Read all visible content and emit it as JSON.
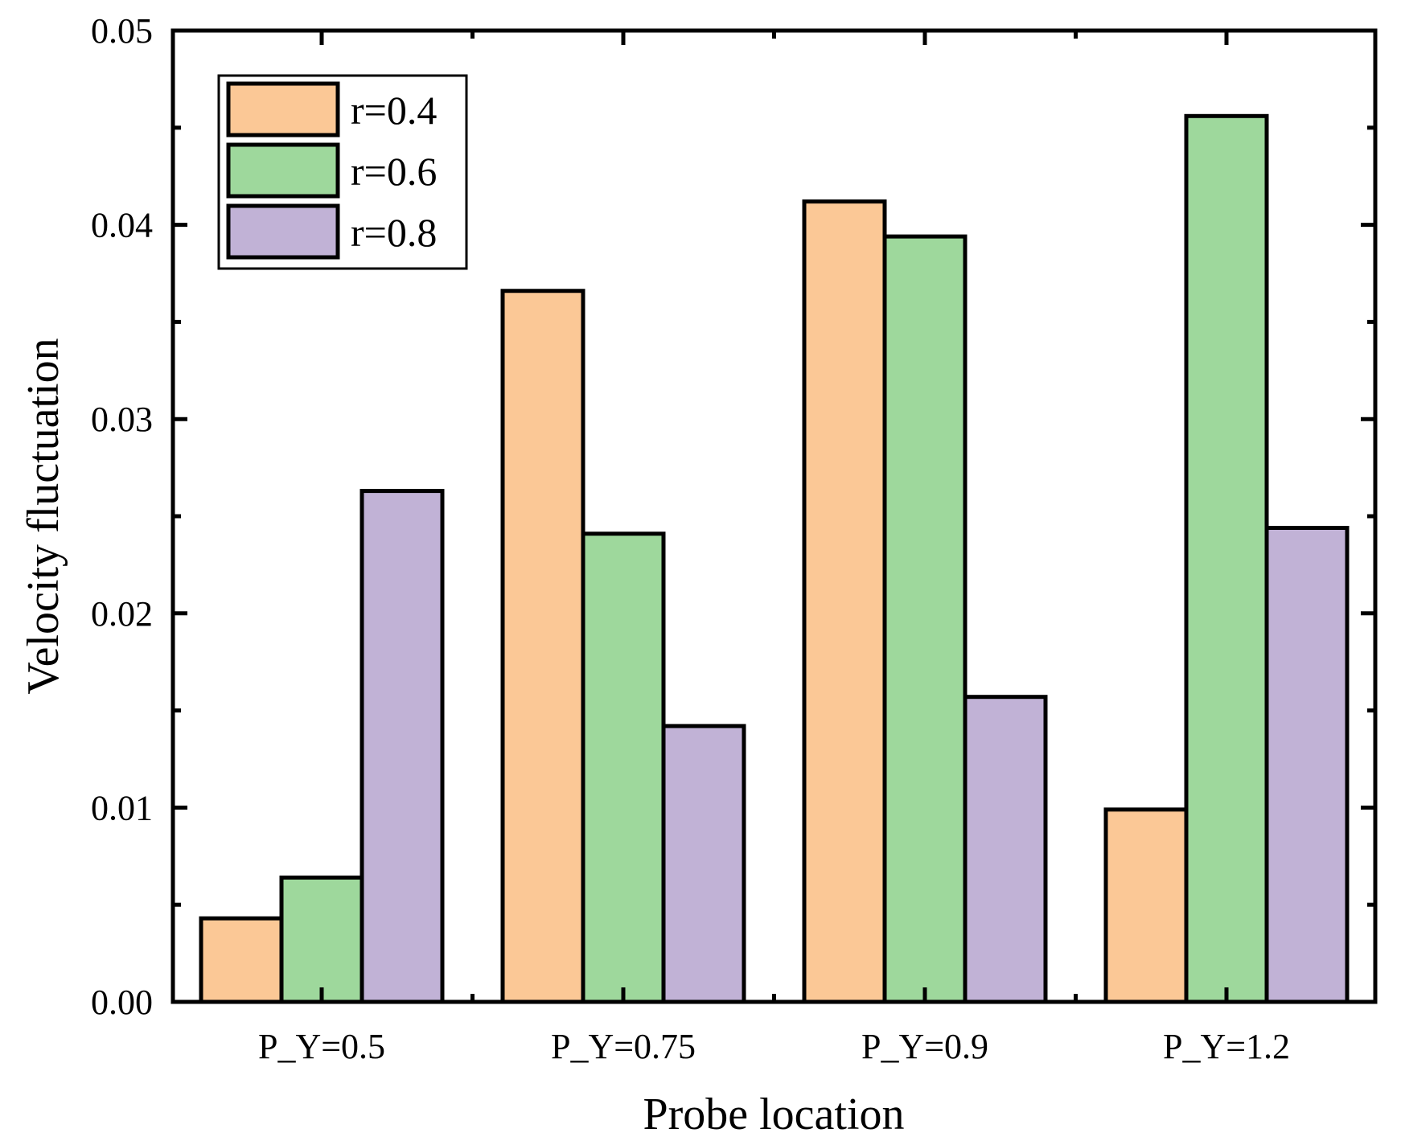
{
  "chart_data": {
    "type": "bar",
    "title": "",
    "xlabel": "Probe location",
    "ylabel": "Velocity fluctuation",
    "categories": [
      "P_Y=0.5",
      "P_Y=0.75",
      "P_Y=0.9",
      "P_Y=1.2"
    ],
    "series": [
      {
        "name": "r=0.4",
        "color": "#FBC896",
        "values": [
          0.0043,
          0.0366,
          0.0412,
          0.0099
        ]
      },
      {
        "name": "r=0.6",
        "color": "#9ED89C",
        "values": [
          0.0064,
          0.0241,
          0.0394,
          0.0456
        ]
      },
      {
        "name": "r=0.8",
        "color": "#C1B2D6",
        "values": [
          0.0263,
          0.0142,
          0.0157,
          0.0244
        ]
      }
    ],
    "ylim": [
      0,
      0.05
    ],
    "yticks": [
      "0.00",
      "0.01",
      "0.02",
      "0.03",
      "0.04",
      "0.05"
    ],
    "legend": "top-left",
    "grid": false
  }
}
